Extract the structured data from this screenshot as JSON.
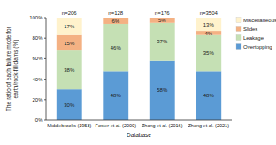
{
  "chart_data": {
    "type": "bar",
    "stacked": true,
    "data_labels": true,
    "legend": "right",
    "grid": false,
    "y_label": "The ratio of each failure mode for earth/rock-fill dams (%)",
    "x_label": "Database",
    "categories": [
      "Middlebrooks (1953)",
      "Foster et al. (2000)",
      "Zhang et al. (2016)",
      "Zhong et al. (2021)"
    ],
    "annotations": [
      "n=206",
      "n=128",
      "n=176",
      "n=3504"
    ],
    "ylim": [
      0,
      100
    ],
    "yticks": [
      {
        "value": 0,
        "label": "0%"
      },
      {
        "value": 20,
        "label": "20%"
      },
      {
        "value": 40,
        "label": "40%"
      },
      {
        "value": 60,
        "label": "60%"
      },
      {
        "value": 80,
        "label": "80%"
      },
      {
        "value": 100,
        "label": "100%"
      }
    ],
    "series": [
      {
        "name": "Overtopping",
        "color": "#5b9bd5",
        "values": [
          30,
          48,
          58,
          48
        ],
        "value_labels": [
          "30%",
          "48%",
          "58%",
          "48%"
        ]
      },
      {
        "name": "Leakage",
        "color": "#c5e0b4",
        "values": [
          38,
          46,
          37,
          35
        ],
        "value_labels": [
          "38%",
          "46%",
          "37%",
          "35%"
        ]
      },
      {
        "name": "Slides",
        "color": "#f4b183",
        "values": [
          15,
          6,
          5,
          4
        ],
        "value_labels": [
          "15%",
          "6%",
          "5%",
          "4%"
        ]
      },
      {
        "name": "Miscellaneous",
        "color": "#fff2cc",
        "values": [
          17,
          0,
          0,
          13
        ],
        "value_labels": [
          "17%",
          null,
          null,
          "13%"
        ]
      }
    ]
  }
}
